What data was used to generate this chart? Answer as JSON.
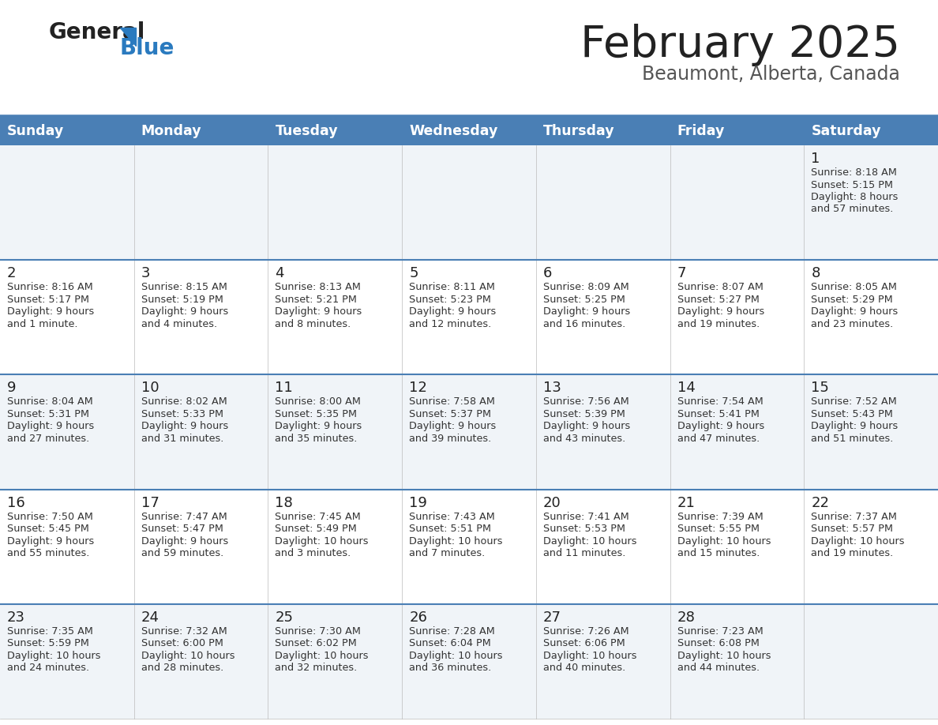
{
  "title": "February 2025",
  "subtitle": "Beaumont, Alberta, Canada",
  "header_color": "#4a7fb5",
  "header_text_color": "#ffffff",
  "cell_bg_even": "#f0f4f8",
  "cell_bg_odd": "#ffffff",
  "day_number_color": "#222222",
  "info_text_color": "#333333",
  "separator_color": "#4a7fb5",
  "logo_general_color": "#222222",
  "logo_blue_color": "#2a7abf",
  "logo_triangle_color": "#2a7abf",
  "title_color": "#222222",
  "subtitle_color": "#555555",
  "days_of_week": [
    "Sunday",
    "Monday",
    "Tuesday",
    "Wednesday",
    "Thursday",
    "Friday",
    "Saturday"
  ],
  "calendar": [
    [
      {
        "day": "",
        "sunrise": "",
        "sunset": "",
        "daylight_h": "",
        "daylight_m": ""
      },
      {
        "day": "",
        "sunrise": "",
        "sunset": "",
        "daylight_h": "",
        "daylight_m": ""
      },
      {
        "day": "",
        "sunrise": "",
        "sunset": "",
        "daylight_h": "",
        "daylight_m": ""
      },
      {
        "day": "",
        "sunrise": "",
        "sunset": "",
        "daylight_h": "",
        "daylight_m": ""
      },
      {
        "day": "",
        "sunrise": "",
        "sunset": "",
        "daylight_h": "",
        "daylight_m": ""
      },
      {
        "day": "",
        "sunrise": "",
        "sunset": "",
        "daylight_h": "",
        "daylight_m": ""
      },
      {
        "day": "1",
        "sunrise": "8:18 AM",
        "sunset": "5:15 PM",
        "daylight_h": "8 hours",
        "daylight_m": "and 57 minutes."
      }
    ],
    [
      {
        "day": "2",
        "sunrise": "8:16 AM",
        "sunset": "5:17 PM",
        "daylight_h": "9 hours",
        "daylight_m": "and 1 minute."
      },
      {
        "day": "3",
        "sunrise": "8:15 AM",
        "sunset": "5:19 PM",
        "daylight_h": "9 hours",
        "daylight_m": "and 4 minutes."
      },
      {
        "day": "4",
        "sunrise": "8:13 AM",
        "sunset": "5:21 PM",
        "daylight_h": "9 hours",
        "daylight_m": "and 8 minutes."
      },
      {
        "day": "5",
        "sunrise": "8:11 AM",
        "sunset": "5:23 PM",
        "daylight_h": "9 hours",
        "daylight_m": "and 12 minutes."
      },
      {
        "day": "6",
        "sunrise": "8:09 AM",
        "sunset": "5:25 PM",
        "daylight_h": "9 hours",
        "daylight_m": "and 16 minutes."
      },
      {
        "day": "7",
        "sunrise": "8:07 AM",
        "sunset": "5:27 PM",
        "daylight_h": "9 hours",
        "daylight_m": "and 19 minutes."
      },
      {
        "day": "8",
        "sunrise": "8:05 AM",
        "sunset": "5:29 PM",
        "daylight_h": "9 hours",
        "daylight_m": "and 23 minutes."
      }
    ],
    [
      {
        "day": "9",
        "sunrise": "8:04 AM",
        "sunset": "5:31 PM",
        "daylight_h": "9 hours",
        "daylight_m": "and 27 minutes."
      },
      {
        "day": "10",
        "sunrise": "8:02 AM",
        "sunset": "5:33 PM",
        "daylight_h": "9 hours",
        "daylight_m": "and 31 minutes."
      },
      {
        "day": "11",
        "sunrise": "8:00 AM",
        "sunset": "5:35 PM",
        "daylight_h": "9 hours",
        "daylight_m": "and 35 minutes."
      },
      {
        "day": "12",
        "sunrise": "7:58 AM",
        "sunset": "5:37 PM",
        "daylight_h": "9 hours",
        "daylight_m": "and 39 minutes."
      },
      {
        "day": "13",
        "sunrise": "7:56 AM",
        "sunset": "5:39 PM",
        "daylight_h": "9 hours",
        "daylight_m": "and 43 minutes."
      },
      {
        "day": "14",
        "sunrise": "7:54 AM",
        "sunset": "5:41 PM",
        "daylight_h": "9 hours",
        "daylight_m": "and 47 minutes."
      },
      {
        "day": "15",
        "sunrise": "7:52 AM",
        "sunset": "5:43 PM",
        "daylight_h": "9 hours",
        "daylight_m": "and 51 minutes."
      }
    ],
    [
      {
        "day": "16",
        "sunrise": "7:50 AM",
        "sunset": "5:45 PM",
        "daylight_h": "9 hours",
        "daylight_m": "and 55 minutes."
      },
      {
        "day": "17",
        "sunrise": "7:47 AM",
        "sunset": "5:47 PM",
        "daylight_h": "9 hours",
        "daylight_m": "and 59 minutes."
      },
      {
        "day": "18",
        "sunrise": "7:45 AM",
        "sunset": "5:49 PM",
        "daylight_h": "10 hours",
        "daylight_m": "and 3 minutes."
      },
      {
        "day": "19",
        "sunrise": "7:43 AM",
        "sunset": "5:51 PM",
        "daylight_h": "10 hours",
        "daylight_m": "and 7 minutes."
      },
      {
        "day": "20",
        "sunrise": "7:41 AM",
        "sunset": "5:53 PM",
        "daylight_h": "10 hours",
        "daylight_m": "and 11 minutes."
      },
      {
        "day": "21",
        "sunrise": "7:39 AM",
        "sunset": "5:55 PM",
        "daylight_h": "10 hours",
        "daylight_m": "and 15 minutes."
      },
      {
        "day": "22",
        "sunrise": "7:37 AM",
        "sunset": "5:57 PM",
        "daylight_h": "10 hours",
        "daylight_m": "and 19 minutes."
      }
    ],
    [
      {
        "day": "23",
        "sunrise": "7:35 AM",
        "sunset": "5:59 PM",
        "daylight_h": "10 hours",
        "daylight_m": "and 24 minutes."
      },
      {
        "day": "24",
        "sunrise": "7:32 AM",
        "sunset": "6:00 PM",
        "daylight_h": "10 hours",
        "daylight_m": "and 28 minutes."
      },
      {
        "day": "25",
        "sunrise": "7:30 AM",
        "sunset": "6:02 PM",
        "daylight_h": "10 hours",
        "daylight_m": "and 32 minutes."
      },
      {
        "day": "26",
        "sunrise": "7:28 AM",
        "sunset": "6:04 PM",
        "daylight_h": "10 hours",
        "daylight_m": "and 36 minutes."
      },
      {
        "day": "27",
        "sunrise": "7:26 AM",
        "sunset": "6:06 PM",
        "daylight_h": "10 hours",
        "daylight_m": "and 40 minutes."
      },
      {
        "day": "28",
        "sunrise": "7:23 AM",
        "sunset": "6:08 PM",
        "daylight_h": "10 hours",
        "daylight_m": "and 44 minutes."
      },
      {
        "day": "",
        "sunrise": "",
        "sunset": "",
        "daylight_h": "",
        "daylight_m": ""
      }
    ]
  ],
  "figwidth": 11.88,
  "figheight": 9.18,
  "dpi": 100
}
